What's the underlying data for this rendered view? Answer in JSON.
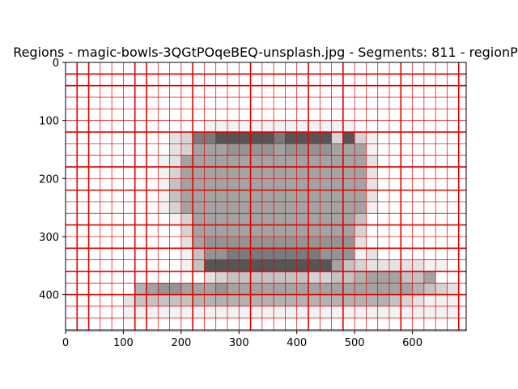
{
  "chart_data": {
    "type": "heatmap",
    "title": "Regions - magic-bowls-3QGtPOqeBEQ-unsplash.jpg - Segments: 811 - regionP",
    "xlabel": "",
    "ylabel": "",
    "xlim": [
      0,
      693
    ],
    "ylim": [
      462,
      0
    ],
    "x_ticks": [
      0,
      100,
      200,
      300,
      400,
      500,
      600
    ],
    "y_ticks": [
      0,
      100,
      200,
      300,
      400
    ],
    "x_tick_labels": [
      "0",
      "100",
      "200",
      "300",
      "400",
      "500",
      "600"
    ],
    "y_tick_labels": [
      "0",
      "100",
      "200",
      "300",
      "400"
    ],
    "cell_size": 20,
    "cell_origin": [
      0,
      0
    ],
    "gray_levels": {
      "0": "#ffffff",
      "1": "#f2f2f2",
      "2": "#e3e3e3",
      "3": "#d4d4d4",
      "4": "#c3c3c3",
      "5": "#b2b2b2",
      "6": "#a3a3a3",
      "7": "#949494",
      "8": "#7a7a7a",
      "9": "#555555",
      "10": "#333333"
    },
    "cells": [
      "0000000000000000000000000000000000",
      "0000000000000000000000000000000000",
      "0000000000000000000000000000000000",
      "0000000000000000000000000000000000",
      "0000000000000000000000000000000000",
      "0000000000001111111111111000000000",
      "0000000002388999998999939310000000",
      "0000000002366677776777766610000000",
      "0000000012666666666666666620000000",
      "0000000013666666666666666620000000",
      "0000000014666666666666666620000000",
      "0000000014666666666666666620000000",
      "0000000013666666666666666610000000",
      "0000000001366666666666666400000000",
      "0000000000366666666666666300000000",
      "0000000000267777777777777200000000",
      "0000000000147788888888777120000000",
      "0000000000149999999999964322222110",
      "0000000000002344444443344566644600",
      "0000005677666766666666666666665432",
      "0000024444455555555555555555432111",
      "0000011111111111111111111111111111",
      "0000000000000000000000000000000000",
      "0000000000000000000000000000000000"
    ],
    "grid_lines_x": [
      0,
      20,
      40,
      60,
      80,
      100,
      120,
      140,
      160,
      180,
      200,
      220,
      240,
      260,
      280,
      300,
      320,
      340,
      360,
      380,
      400,
      420,
      440,
      460,
      480,
      500,
      520,
      540,
      560,
      580,
      600,
      620,
      640,
      660,
      680
    ],
    "grid_lines_y": [
      0,
      20,
      40,
      60,
      80,
      100,
      120,
      140,
      160,
      180,
      200,
      220,
      240,
      260,
      280,
      300,
      320,
      340,
      360,
      380,
      400,
      420,
      440,
      460
    ],
    "grid_color": "#e00000",
    "thick_grid_x": [
      20,
      40,
      120,
      140,
      220,
      320,
      420,
      480,
      580,
      680
    ],
    "thick_grid_y": [
      20,
      40,
      120,
      180,
      220,
      280,
      320,
      360,
      400
    ]
  }
}
